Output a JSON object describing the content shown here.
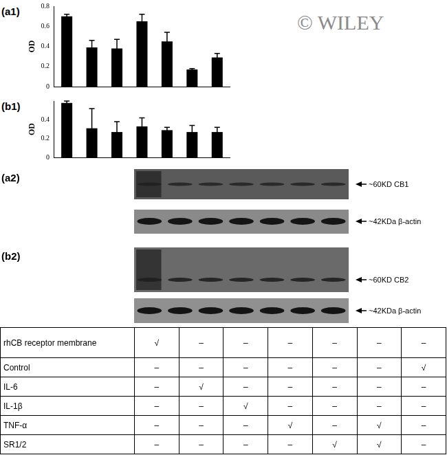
{
  "watermark": "© WILEY",
  "chart_data": [
    {
      "type": "bar",
      "title": "(a1)",
      "y_label": "OD",
      "categories": [
        null,
        null,
        null,
        null,
        null,
        null,
        null
      ],
      "values": [
        0.7,
        0.39,
        0.38,
        0.65,
        0.45,
        0.17,
        0.29
      ],
      "errors": [
        0.02,
        0.07,
        0.09,
        0.07,
        0.09,
        0.01,
        0.04
      ],
      "color": "#000000",
      "ylim": [
        0,
        0.8
      ],
      "yticks": [
        0,
        0.2,
        0.4,
        0.6,
        0.8
      ],
      "grid": false,
      "tick_labels": "y"
    },
    {
      "type": "bar",
      "title": "(b1)",
      "y_label": "OD",
      "categories": [
        null,
        null,
        null,
        null,
        null,
        null,
        null
      ],
      "values": [
        0.58,
        0.31,
        0.27,
        0.33,
        0.29,
        0.27,
        0.27
      ],
      "errors": [
        0.02,
        0.21,
        0.11,
        0.09,
        0.03,
        0.07,
        0.05
      ],
      "color": "#000000",
      "ylim": [
        0,
        0.6
      ],
      "yticks": [
        0,
        0.2,
        0.4
      ],
      "grid": false,
      "tick_labels": "y"
    }
  ],
  "blots": [
    {
      "panel": "(a2)",
      "bands": [
        "~60KD CB1",
        "~42KDa β-actin"
      ]
    },
    {
      "panel": "(b2)",
      "bands": [
        "~60KD CB2",
        "~42KDa β-actin"
      ]
    }
  ],
  "table": {
    "rows": [
      {
        "label": "rhCB receptor membrane",
        "cells": [
          "√",
          "–",
          "–",
          "–",
          "–",
          "–",
          "–"
        ]
      },
      {
        "label": "Control",
        "cells": [
          "–",
          "–",
          "–",
          "–",
          "–",
          "–",
          "√"
        ]
      },
      {
        "label": "IL-6",
        "cells": [
          "–",
          "√",
          "–",
          "–",
          "–",
          "–",
          "–"
        ]
      },
      {
        "label": "IL-1β",
        "cells": [
          "–",
          "–",
          "√",
          "–",
          "–",
          "–",
          "–"
        ]
      },
      {
        "label": "TNF-α",
        "cells": [
          "–",
          "–",
          "–",
          "√",
          "–",
          "√",
          "–"
        ]
      },
      {
        "label": "SR1/2",
        "cells": [
          "–",
          "–",
          "–",
          "–",
          "√",
          "√",
          "–"
        ]
      }
    ]
  }
}
